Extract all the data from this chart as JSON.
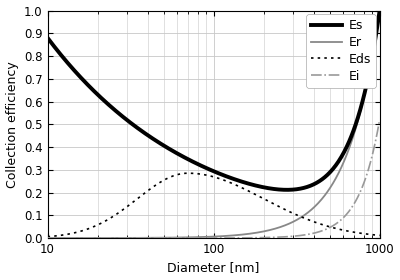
{
  "title": "",
  "xlabel": "Diameter [nm]",
  "ylabel": "Collection efficiency",
  "xlim": [
    10,
    1000
  ],
  "ylim": [
    0.0,
    1.0
  ],
  "yticks": [
    0.0,
    0.1,
    0.2,
    0.3,
    0.4,
    0.5,
    0.6,
    0.7,
    0.8,
    0.9,
    1.0
  ],
  "xticks": [
    10,
    100,
    1000
  ],
  "legend_entries": [
    "Es",
    "Er",
    "Eds",
    "Ei"
  ],
  "background_color": "#ffffff",
  "grid_color": "#c8c8c8",
  "Es_color": "#000000",
  "Er_color": "#888888",
  "Eds_color": "#000000",
  "Ei_color": "#999999"
}
